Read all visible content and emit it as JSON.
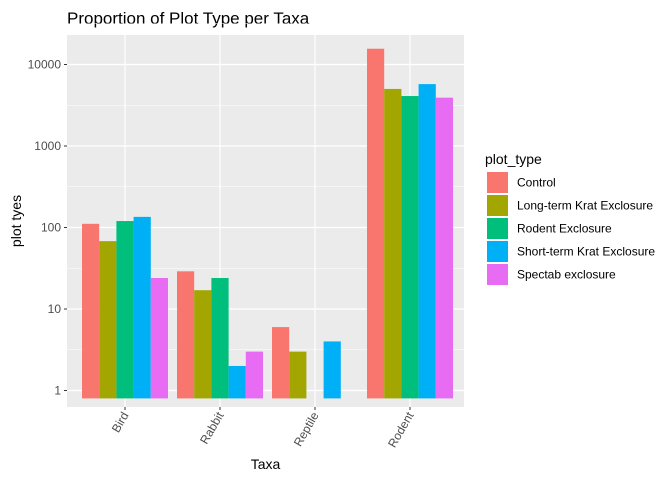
{
  "chart_data": {
    "type": "bar",
    "title": "Proportion of Plot Type per Taxa",
    "xlabel": "Taxa",
    "ylabel": "plot tyes",
    "y_scale": "log10",
    "ylim": [
      0.8,
      20000
    ],
    "y_ticks": [
      1,
      10,
      100,
      1000,
      10000
    ],
    "y_tick_labels": [
      "1",
      "10",
      "100",
      "1000",
      "10000"
    ],
    "grid": true,
    "legend": {
      "title": "plot_type",
      "position": "right"
    },
    "categories": [
      "Bird",
      "Rabbit",
      "Reptile",
      "Rodent"
    ],
    "series": [
      {
        "name": "Control",
        "color": "#F8766D",
        "values": [
          111,
          29,
          6,
          15611
        ]
      },
      {
        "name": "Long-term Krat Exclosure",
        "color": "#A3A500",
        "values": [
          68,
          17,
          3,
          5015
        ]
      },
      {
        "name": "Rodent Exclosure",
        "color": "#00BF7D",
        "values": [
          120,
          24,
          null,
          4103
        ]
      },
      {
        "name": "Short-term Krat Exclosure",
        "color": "#00B0F6",
        "values": [
          135,
          2,
          4,
          5747
        ]
      },
      {
        "name": "Spectab exclosure",
        "color": "#E76BF3",
        "values": [
          24,
          3,
          null,
          3918
        ]
      }
    ]
  }
}
